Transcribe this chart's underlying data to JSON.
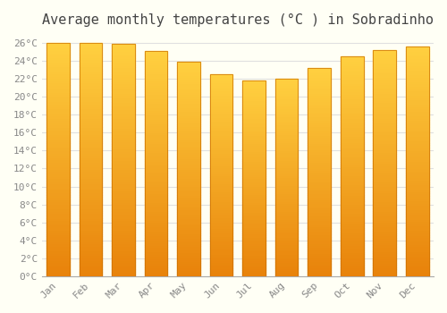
{
  "title": "Average monthly temperatures (°C ) in Sobradinho",
  "months": [
    "Jan",
    "Feb",
    "Mar",
    "Apr",
    "May",
    "Jun",
    "Jul",
    "Aug",
    "Sep",
    "Oct",
    "Nov",
    "Dec"
  ],
  "values": [
    26.0,
    26.0,
    25.9,
    25.1,
    23.9,
    22.5,
    21.8,
    22.0,
    23.2,
    24.5,
    25.2,
    25.6
  ],
  "bar_color_bottom": "#E8820A",
  "bar_color_top": "#FFD040",
  "background_color": "#FFFFF5",
  "grid_color": "#E0E0E0",
  "ylim": [
    0,
    27
  ],
  "ytick_step": 2,
  "title_fontsize": 11,
  "tick_fontsize": 8,
  "font_family": "monospace",
  "tick_color": "#888888",
  "title_color": "#444444",
  "bar_width": 0.7
}
